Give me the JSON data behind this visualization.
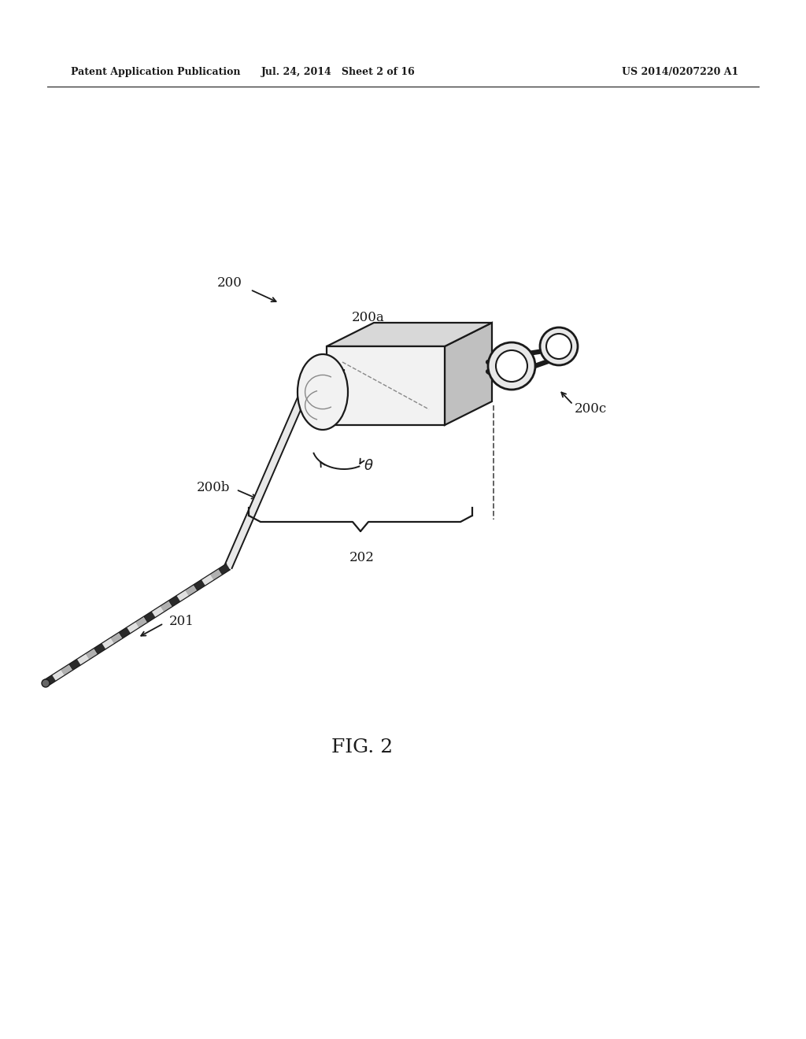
{
  "bg_color": "#ffffff",
  "header_left": "Patent Application Publication",
  "header_center": "Jul. 24, 2014   Sheet 2 of 16",
  "header_right": "US 2014/0207220 A1",
  "fig_label": "FIG. 2",
  "line_color": "#1a1a1a",
  "body_fill_light": "#f2f2f2",
  "body_fill_mid": "#d8d8d8",
  "body_fill_dark": "#c0c0c0",
  "body_edge": "#1a1a1a"
}
